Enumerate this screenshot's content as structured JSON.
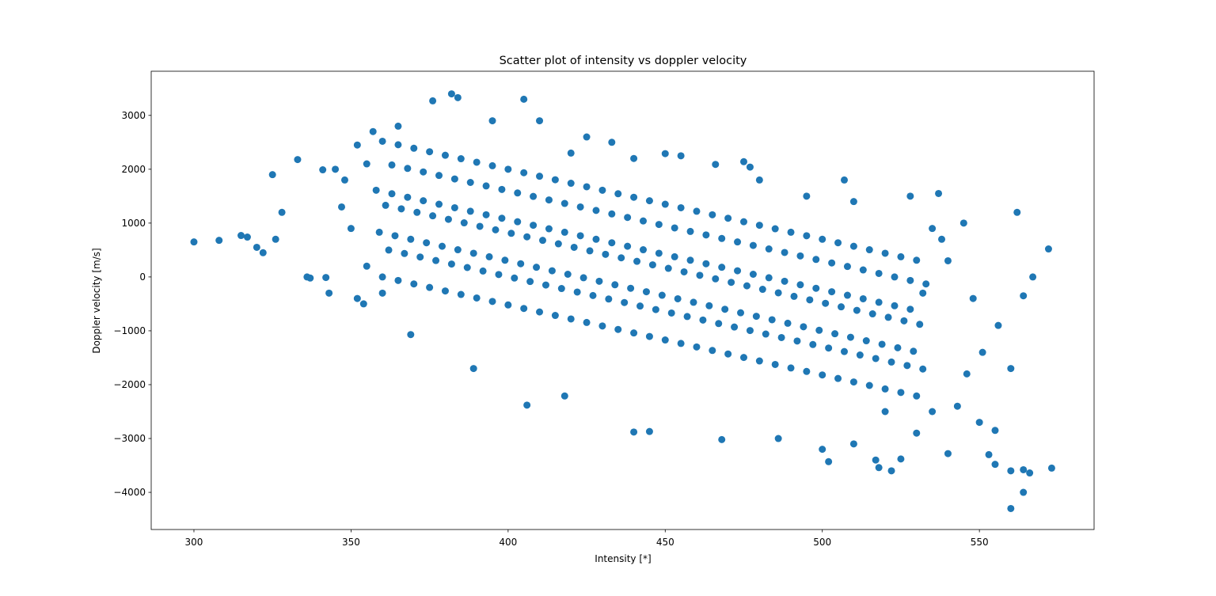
{
  "chart_data": {
    "type": "scatter",
    "title": "Scatter plot of intensity vs doppler velocity",
    "x_label": "Intensity [*]",
    "y_label": "Doppler velocity [m/s]",
    "color": "#1f77b4",
    "xlim": [
      286.4,
      586.5
    ],
    "ylim": [
      -4690,
      3820
    ],
    "xticks": [
      300,
      350,
      400,
      450,
      500,
      550
    ],
    "yticks": [
      {
        "value": -4000,
        "label": "−4000"
      },
      {
        "value": -3000,
        "label": "−3000"
      },
      {
        "value": -2000,
        "label": "−2000"
      },
      {
        "value": -1000,
        "label": "−1000"
      },
      0,
      1000,
      2000,
      3000
    ],
    "x": [
      360,
      362,
      359,
      361,
      358,
      363,
      360,
      365,
      367,
      364,
      366,
      363,
      368,
      365,
      370,
      372,
      369,
      371,
      368,
      373,
      370,
      375,
      377,
      374,
      376,
      373,
      378,
      375,
      380,
      382,
      379,
      381,
      378,
      383,
      380,
      385,
      387,
      384,
      386,
      383,
      388,
      385,
      390,
      392,
      389,
      391,
      388,
      393,
      390,
      395,
      397,
      394,
      396,
      393,
      398,
      395,
      400,
      402,
      399,
      401,
      398,
      403,
      400,
      405,
      407,
      404,
      406,
      403,
      408,
      405,
      410,
      412,
      409,
      411,
      408,
      413,
      410,
      415,
      417,
      414,
      416,
      413,
      418,
      415,
      420,
      422,
      419,
      421,
      418,
      423,
      420,
      425,
      427,
      424,
      426,
      423,
      428,
      425,
      430,
      432,
      429,
      431,
      428,
      433,
      430,
      435,
      437,
      434,
      436,
      433,
      438,
      435,
      440,
      442,
      439,
      441,
      438,
      443,
      440,
      445,
      447,
      444,
      446,
      443,
      448,
      445,
      450,
      452,
      449,
      451,
      448,
      453,
      450,
      455,
      457,
      454,
      456,
      453,
      458,
      455,
      460,
      462,
      459,
      461,
      458,
      463,
      460,
      465,
      467,
      464,
      466,
      463,
      468,
      465,
      470,
      472,
      469,
      471,
      468,
      473,
      470,
      475,
      477,
      474,
      476,
      473,
      478,
      475,
      480,
      482,
      479,
      481,
      478,
      483,
      480,
      485,
      487,
      484,
      486,
      483,
      488,
      485,
      490,
      492,
      489,
      491,
      488,
      493,
      490,
      495,
      497,
      494,
      496,
      493,
      498,
      495,
      500,
      502,
      499,
      501,
      498,
      503,
      500,
      505,
      507,
      504,
      506,
      503,
      508,
      505,
      510,
      512,
      509,
      511,
      508,
      513,
      510,
      515,
      517,
      514,
      516,
      513,
      518,
      515,
      520,
      522,
      519,
      521,
      518,
      523,
      520,
      525,
      527,
      524,
      526,
      523,
      528,
      525,
      530,
      532,
      529,
      531,
      528,
      533,
      530,
      300,
      308,
      315,
      317,
      320,
      322,
      325,
      326,
      328,
      333,
      336,
      341,
      345,
      352,
      357,
      376,
      382,
      384,
      405,
      420,
      433,
      450,
      455,
      466,
      475,
      477,
      507,
      528,
      537,
      562,
      572,
      567,
      564,
      560,
      550,
      555,
      560,
      560,
      564,
      566,
      573,
      500,
      502,
      522,
      518,
      468,
      486,
      440,
      445,
      406,
      418,
      389,
      369,
      354,
      343,
      337,
      342,
      555,
      540,
      553,
      517,
      525,
      510,
      564,
      538,
      545,
      548,
      556,
      546,
      535,
      530,
      543,
      551,
      535,
      540,
      532,
      350,
      347,
      355,
      352,
      348,
      355,
      360,
      365,
      395,
      410,
      425,
      440,
      480,
      495,
      510,
      520
    ],
    "y": [
      0,
      500,
      830,
      1330,
      1610,
      2080,
      2520,
      -65,
      435,
      765,
      1265,
      1545,
      2015,
      2455,
      -130,
      370,
      700,
      1200,
      1480,
      1950,
      2390,
      -195,
      305,
      635,
      1135,
      1415,
      1885,
      2325,
      -260,
      240,
      570,
      1070,
      1350,
      1820,
      2260,
      -325,
      175,
      505,
      1005,
      1285,
      1755,
      2195,
      -390,
      110,
      440,
      940,
      1220,
      1690,
      2130,
      -455,
      45,
      375,
      875,
      1155,
      1625,
      2065,
      -520,
      -20,
      310,
      810,
      1090,
      1560,
      2000,
      -585,
      -85,
      245,
      745,
      1025,
      1495,
      1935,
      -650,
      -150,
      180,
      680,
      960,
      1430,
      1870,
      -715,
      -215,
      115,
      615,
      895,
      1365,
      1805,
      -780,
      -280,
      50,
      550,
      830,
      1300,
      1740,
      -845,
      -345,
      -15,
      485,
      765,
      1235,
      1675,
      -910,
      -410,
      -80,
      420,
      700,
      1170,
      1610,
      -975,
      -475,
      -145,
      355,
      635,
      1105,
      1545,
      -1040,
      -540,
      -210,
      290,
      570,
      1040,
      1480,
      -1105,
      -605,
      -275,
      225,
      505,
      975,
      1415,
      -1170,
      -670,
      -340,
      160,
      440,
      910,
      1350,
      -1235,
      -735,
      -405,
      95,
      375,
      845,
      1285,
      -1300,
      -800,
      -470,
      30,
      310,
      780,
      1220,
      -1365,
      -865,
      -535,
      -35,
      245,
      715,
      1155,
      -1430,
      -930,
      -600,
      -100,
      180,
      650,
      1090,
      -1495,
      -995,
      -665,
      -165,
      115,
      585,
      1025,
      -1560,
      -1060,
      -730,
      -230,
      50,
      520,
      960,
      -1625,
      -1125,
      -795,
      -295,
      -15,
      455,
      895,
      -1690,
      -1190,
      -860,
      -360,
      -80,
      390,
      830,
      -1755,
      -1255,
      -925,
      -425,
      -145,
      325,
      765,
      -1820,
      -1320,
      -990,
      -490,
      -210,
      260,
      700,
      -1885,
      -1385,
      -1055,
      -555,
      -275,
      195,
      635,
      -1950,
      -1450,
      -1120,
      -620,
      -340,
      130,
      570,
      -2015,
      -1515,
      -1185,
      -685,
      -405,
      65,
      505,
      -2080,
      -1580,
      -1250,
      -750,
      -470,
      0,
      440,
      -2145,
      -1645,
      -1315,
      -815,
      -535,
      -65,
      375,
      -2210,
      -1710,
      -1380,
      -880,
      -600,
      -130,
      310,
      650,
      680,
      770,
      740,
      550,
      450,
      1900,
      700,
      1200,
      2180,
      0,
      1990,
      2000,
      2450,
      2700,
      3270,
      3400,
      3330,
      3300,
      2300,
      2500,
      2290,
      2250,
      2090,
      2140,
      2040,
      1800,
      1500,
      1550,
      1200,
      520,
      0,
      -350,
      -1700,
      -2700,
      -2850,
      -3600,
      -4300,
      -4000,
      -3640,
      -3550,
      -3200,
      -3430,
      -3600,
      -3540,
      -3020,
      -3000,
      -2880,
      -2870,
      -2380,
      -2210,
      -1700,
      -1070,
      -500,
      -300,
      -20,
      -10,
      -3480,
      -3280,
      -3300,
      -3400,
      -3380,
      -3100,
      -3580,
      700,
      1000,
      -400,
      -900,
      -1800,
      -2500,
      -2900,
      -2400,
      -1400,
      900,
      300,
      -300,
      900,
      1300,
      200,
      -400,
      1800,
      2100,
      -300,
      2800,
      2900,
      2900,
      2600,
      2200,
      1800,
      1500,
      1400,
      -2500
    ]
  }
}
